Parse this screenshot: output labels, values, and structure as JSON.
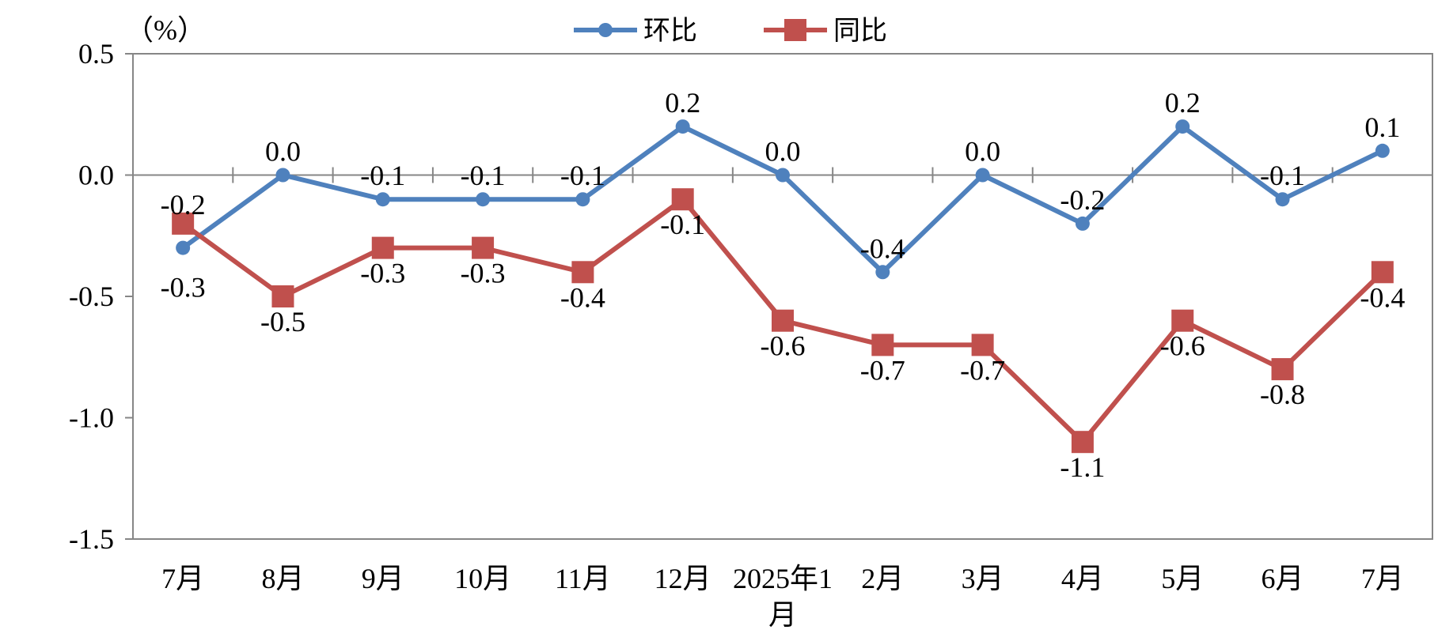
{
  "chart_data": {
    "type": "line",
    "unit_label": "（%）",
    "categories": [
      "7月",
      "8月",
      "9月",
      "10月",
      "11月",
      "12月",
      "2025年1月",
      "2月",
      "3月",
      "4月",
      "5月",
      "6月",
      "7月"
    ],
    "y_tick_labels": [
      "0.5",
      "0.0",
      "-0.5",
      "-1.0",
      "-1.5"
    ],
    "y_ticks": [
      0.5,
      0.0,
      -0.5,
      -1.0,
      -1.5
    ],
    "ylim": [
      -1.5,
      0.5
    ],
    "legend_position": "top-center",
    "series": [
      {
        "name": "环比",
        "color": "#4F81BD",
        "marker": "circle",
        "values": [
          -0.3,
          0.0,
          -0.1,
          -0.1,
          -0.1,
          0.2,
          0.0,
          -0.4,
          0.0,
          -0.2,
          0.2,
          -0.1,
          0.1
        ],
        "labels": [
          "-0.3",
          "0.0",
          "-0.1",
          "-0.1",
          "-0.1",
          "0.2",
          "0.0",
          "-0.4",
          "0.0",
          "-0.2",
          "0.2",
          "-0.1",
          "0.1"
        ]
      },
      {
        "name": "同比",
        "color": "#C0504D",
        "marker": "square",
        "values": [
          -0.2,
          -0.5,
          -0.3,
          -0.3,
          -0.4,
          -0.1,
          -0.6,
          -0.7,
          -0.7,
          -1.1,
          -0.6,
          -0.8,
          -0.4
        ],
        "labels": [
          "-0.2",
          "-0.5",
          "-0.3",
          "-0.3",
          "-0.4",
          "-0.1",
          "-0.6",
          "-0.7",
          "-0.7",
          "-1.1",
          "-0.6",
          "-0.8",
          "-0.4"
        ]
      }
    ]
  }
}
